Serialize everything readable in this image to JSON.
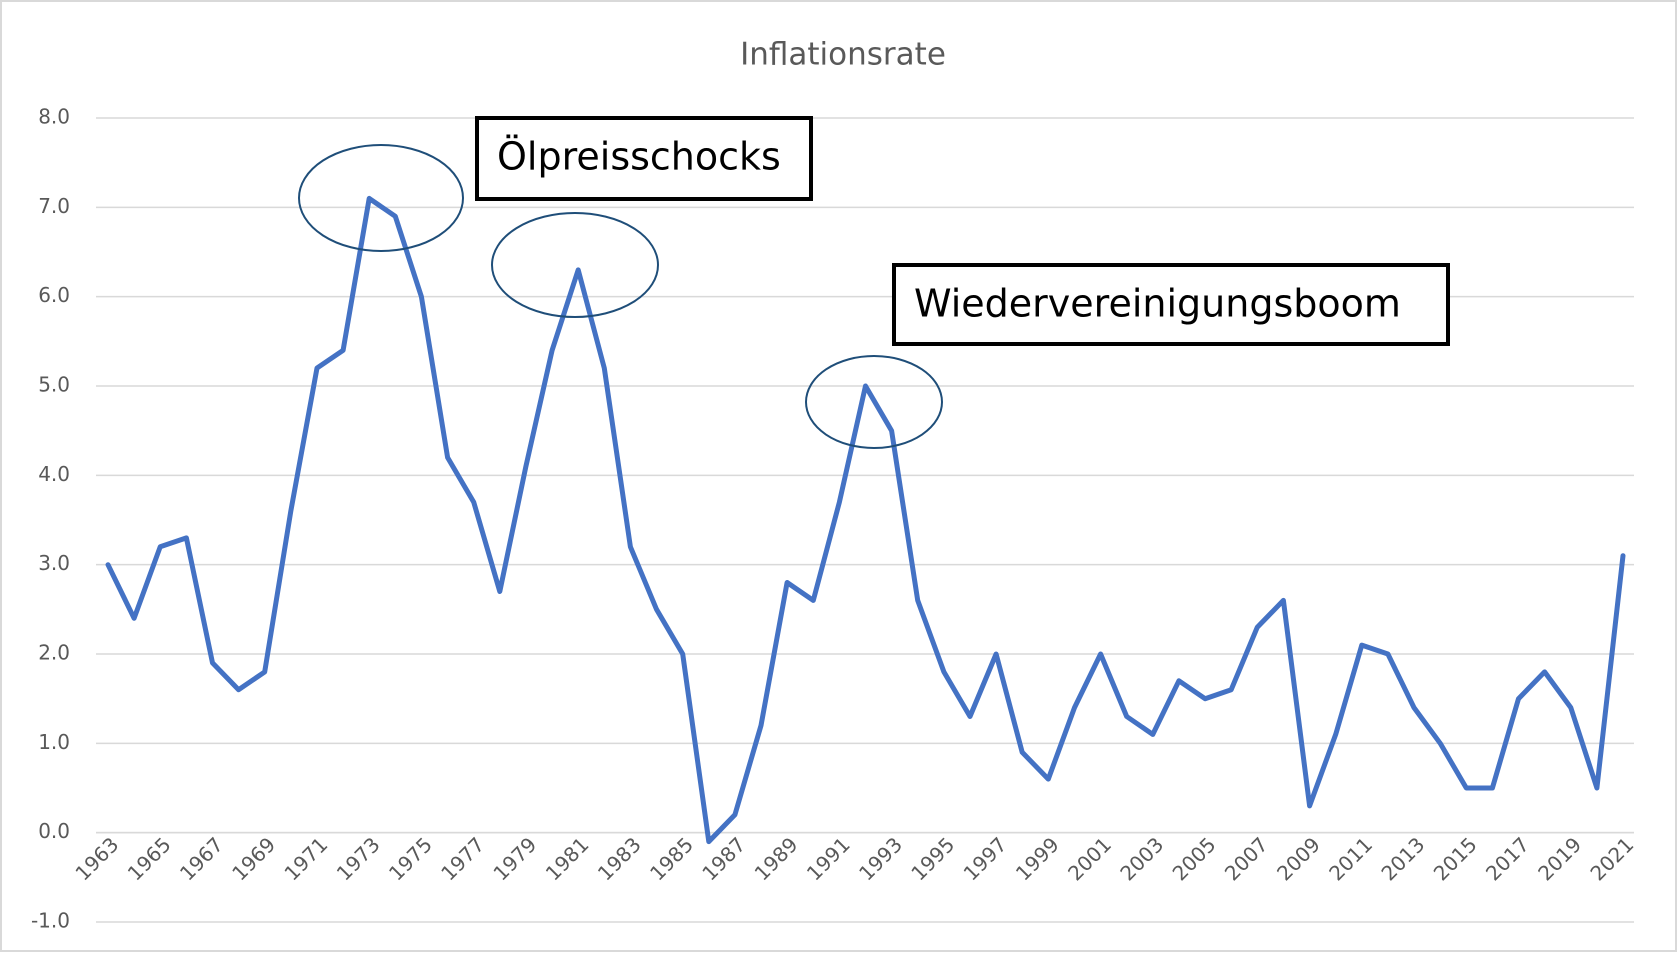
{
  "chart_data": {
    "type": "line",
    "title": "Inflationsrate",
    "categories": [
      "1963",
      null,
      "1965",
      null,
      "1967",
      null,
      "1969",
      null,
      "1971",
      null,
      "1973",
      null,
      "1975",
      null,
      "1977",
      null,
      "1979",
      null,
      "1981",
      null,
      "1983",
      null,
      "1985",
      null,
      "1987",
      null,
      "1989",
      null,
      "1991",
      null,
      "1993",
      null,
      "1995",
      null,
      "1997",
      null,
      "1999",
      null,
      "2001",
      null,
      "2003",
      null,
      "2005",
      null,
      "2007",
      null,
      "2009",
      null,
      "2011",
      null,
      "2013",
      null,
      "2015",
      null,
      "2017",
      null,
      "2019",
      null,
      "2021"
    ],
    "values": [
      3.0,
      2.4,
      3.2,
      3.3,
      1.9,
      1.6,
      1.8,
      3.6,
      5.2,
      5.4,
      7.1,
      6.9,
      6.0,
      4.2,
      3.7,
      2.7,
      4.1,
      5.4,
      6.3,
      5.2,
      3.2,
      2.5,
      2.0,
      -0.1,
      0.2,
      1.2,
      2.8,
      2.6,
      3.7,
      5.0,
      4.5,
      2.6,
      1.8,
      1.3,
      2.0,
      0.9,
      0.6,
      1.4,
      2.0,
      1.3,
      1.1,
      1.7,
      1.5,
      1.6,
      2.3,
      2.6,
      0.3,
      1.1,
      2.1,
      2.0,
      1.4,
      1.0,
      0.5,
      0.5,
      1.5,
      1.8,
      1.4,
      0.5,
      3.1
    ],
    "color": "#4472c4",
    "ylim": [
      -1,
      8
    ],
    "yticks": [
      {
        "value": -1,
        "label": "-1.0"
      },
      {
        "value": 0,
        "label": "0.0"
      },
      {
        "value": 1,
        "label": "1.0"
      },
      {
        "value": 2,
        "label": "2.0"
      },
      {
        "value": 3,
        "label": "3.0"
      },
      {
        "value": 4,
        "label": "4.0"
      },
      {
        "value": 5,
        "label": "5.0"
      },
      {
        "value": 6,
        "label": "6.0"
      },
      {
        "value": 7,
        "label": "7.0"
      },
      {
        "value": 8,
        "label": "8.0"
      }
    ],
    "grid": true,
    "annotations": [
      "Ölpreisschocks",
      "Wiedervereinigungsboom"
    ]
  }
}
